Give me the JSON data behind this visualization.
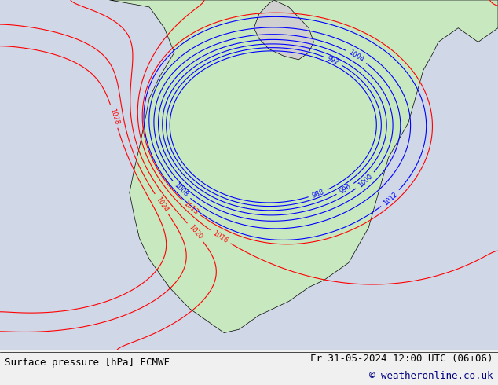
{
  "title_left": "Surface pressure [hPa] ECMWF",
  "title_right": "Fr 31-05-2024 12:00 UTC (06+06)",
  "copyright": "© weatheronline.co.uk",
  "bg_color": "#d0d8e8",
  "land_color": "#c8e8c0",
  "border_color": "#000000",
  "blue_contour_color": "#0000ff",
  "red_contour_color": "#ff0000",
  "black_contour_color": "#000000",
  "label_fontsize": 7,
  "title_fontsize": 9,
  "figsize": [
    6.34,
    4.9
  ],
  "dpi": 100
}
